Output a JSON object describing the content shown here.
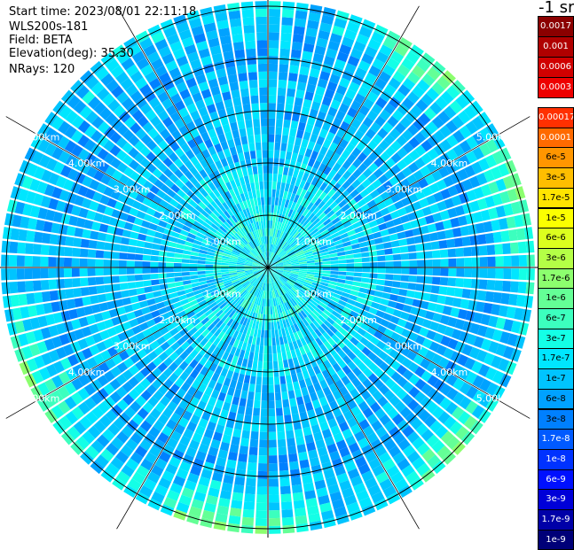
{
  "info": {
    "start_time": "Start time: 2023/08/01 22:11:18",
    "instrument": "WLS200s-181",
    "field": "Field: BETA",
    "elevation": "Elevation(deg): 35.30",
    "nrays": "NRays: 120"
  },
  "chart_data": {
    "type": "heatmap",
    "projection": "polar-ppi",
    "field": "BETA",
    "rays": 120,
    "range_rings_km": [
      1,
      2,
      3,
      4,
      5
    ],
    "max_range_km": 5.1,
    "range_labels": [
      "1.00km",
      "2.00km",
      "3.00km",
      "4.00km",
      "5.00km"
    ],
    "colorbar": {
      "unit": "-1 sr",
      "levels": [
        {
          "label": "0.0017",
          "color": "#8b0000"
        },
        {
          "label": "0.001",
          "color": "#b00000"
        },
        {
          "label": "0.0006",
          "color": "#d00000"
        },
        {
          "label": "0.0003",
          "color": "#ee0000"
        },
        {
          "label": "0.00017",
          "color": "#ff3000"
        },
        {
          "label": "0.0001",
          "color": "#ff6a00"
        },
        {
          "label": "6e-5",
          "color": "#ff9600"
        },
        {
          "label": "3e-5",
          "color": "#ffbe00"
        },
        {
          "label": "1.7e-5",
          "color": "#ffe400"
        },
        {
          "label": "1e-5",
          "color": "#fbff00"
        },
        {
          "label": "6e-6",
          "color": "#dcff1e"
        },
        {
          "label": "3e-6",
          "color": "#b4ff46"
        },
        {
          "label": "1.7e-6",
          "color": "#8cff6e"
        },
        {
          "label": "1e-6",
          "color": "#64ff96"
        },
        {
          "label": "6e-7",
          "color": "#3cffbe"
        },
        {
          "label": "3e-7",
          "color": "#14ffe6"
        },
        {
          "label": "1.7e-7",
          "color": "#00e6ff"
        },
        {
          "label": "1e-7",
          "color": "#00c4ff"
        },
        {
          "label": "6e-8",
          "color": "#00a2ff"
        },
        {
          "label": "3e-8",
          "color": "#0080ff"
        },
        {
          "label": "1.7e-8",
          "color": "#005aff"
        },
        {
          "label": "1e-8",
          "color": "#0032ff"
        },
        {
          "label": "6e-9",
          "color": "#0010ff"
        },
        {
          "label": "3e-9",
          "color": "#0000d8"
        },
        {
          "label": "1.7e-9",
          "color": "#0000a8"
        },
        {
          "label": "1e-9",
          "color": "#000078"
        }
      ]
    }
  }
}
